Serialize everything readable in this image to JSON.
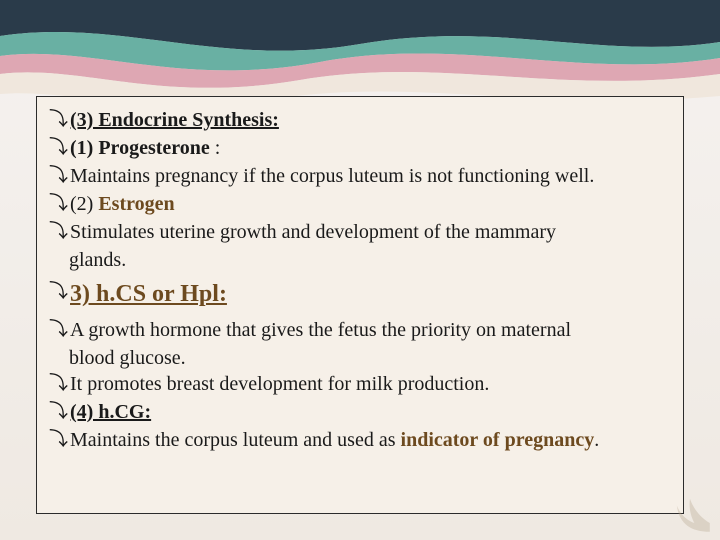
{
  "slide": {
    "lines": [
      {
        "segments": [
          {
            "text": "(3) Endocrine Synthesis:",
            "classes": "txt bold under"
          }
        ]
      },
      {
        "segments": [
          {
            "text": "(1) Progesterone ",
            "classes": "txt bold"
          },
          {
            "text": ":",
            "classes": "txt"
          }
        ]
      },
      {
        "segments": [
          {
            "text": "Maintains pregnancy if the corpus luteum is not functioning well.",
            "classes": "txt"
          }
        ]
      },
      {
        "segments": [
          {
            "text": " (2) ",
            "classes": "txt"
          },
          {
            "text": "Estrogen",
            "classes": "txt bold brown"
          }
        ]
      },
      {
        "segments": [
          {
            "text": "Stimulates uterine growth and development of the mammary",
            "classes": "txt"
          }
        ],
        "wrapAfter": "glands."
      },
      {
        "segments": [
          {
            "text": "3) h.CS or Hpl:",
            "classes": "txt txt-lg bold under brown"
          }
        ],
        "gapBefore": 6,
        "gapAfter": 6
      },
      {
        "segments": [
          {
            "text": "A growth hormone that gives the fetus the priority on maternal",
            "classes": "txt"
          }
        ],
        "wrapAfter": "blood glucose."
      },
      {
        "segments": [
          {
            "text": "It promotes breast development for milk production.",
            "classes": "txt"
          }
        ]
      },
      {
        "segments": [
          {
            "text": "(4) h.CG:",
            "classes": "txt bold under"
          }
        ]
      },
      {
        "segments": [
          {
            "text": "Maintains the corpus luteum and used as ",
            "classes": "txt"
          },
          {
            "text": "indicator of pregnancy",
            "classes": "txt bold brown"
          },
          {
            "text": ".",
            "classes": "txt"
          }
        ]
      }
    ]
  },
  "style": {
    "bullet_glyph": "⤵",
    "text_color": "#1a1a1a",
    "accent_color": "#6d4a1f",
    "box_bg": "#f6f0e8",
    "box_border": "#2b2b2b",
    "page_bg_top": "#f5f2f0",
    "page_bg_bottom": "#efe9e2",
    "wave_colors": {
      "dark": "#2a3b4a",
      "teal": "#5aa99a",
      "pink": "#d99aa8",
      "cream": "#f0e6da"
    },
    "base_fontsize": 20,
    "large_fontsize": 24,
    "font_family": "Georgia, Times New Roman, serif"
  }
}
